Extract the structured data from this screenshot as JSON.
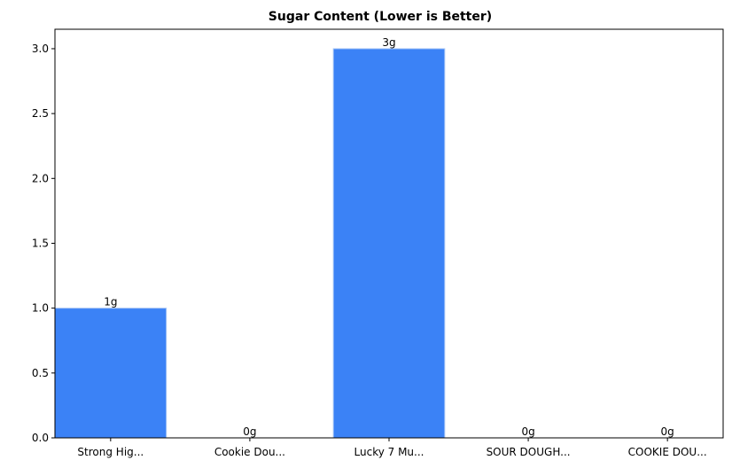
{
  "chart_data": {
    "type": "bar",
    "title": "Sugar Content (Lower is Better)",
    "categories": [
      "Strong Hig...",
      "Cookie Dou...",
      "Lucky 7 Mu...",
      "SOUR DOUGH...",
      "COOKIE DOU..."
    ],
    "values": [
      1,
      0,
      3,
      0,
      0
    ],
    "value_labels": [
      "1g",
      "0g",
      "3g",
      "0g",
      "0g"
    ],
    "xlabel": "",
    "ylabel": "",
    "ylim": [
      0,
      3.15
    ],
    "yticks": [
      0.0,
      0.5,
      1.0,
      1.5,
      2.0,
      2.5,
      3.0
    ],
    "ytick_labels": [
      "0.0",
      "0.5",
      "1.0",
      "1.5",
      "2.0",
      "2.5",
      "3.0"
    ],
    "grid": false,
    "bar_color": "#3b82f6",
    "bar_edge_color": "#a9c7f5"
  }
}
